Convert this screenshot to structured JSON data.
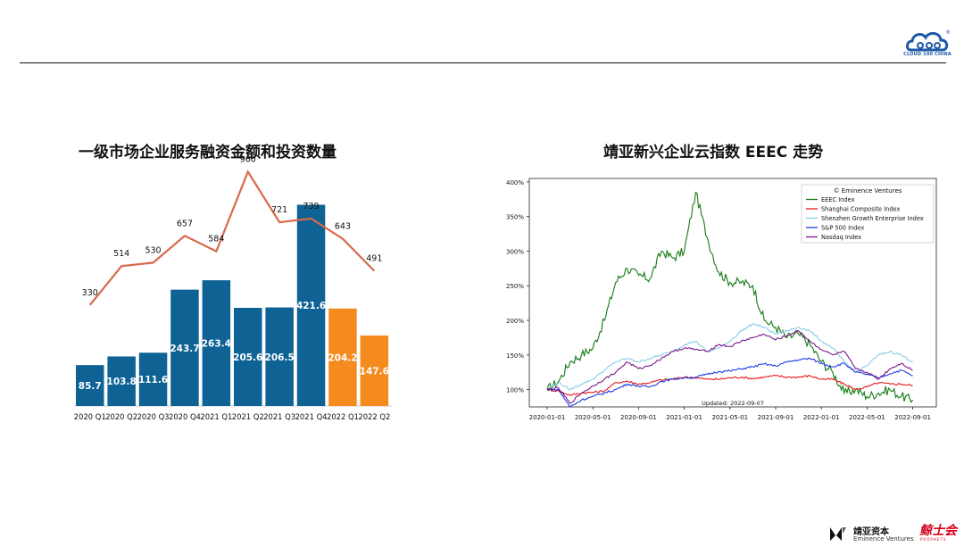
{
  "header": {
    "logo_text": "CLOUD 100 CHINA",
    "logo_mark": "®"
  },
  "footer": {
    "company_cn": "靖亚资本",
    "company_en": "Eminence Ventures",
    "brand": "鲸士会",
    "brand_sub": "PROPHETS"
  },
  "chart_data": [
    {
      "type": "bar",
      "title": "一级市场企业服务融资金额和投资数量",
      "categories": [
        "2020 Q1",
        "2020 Q2",
        "2020 Q3",
        "2020 Q4",
        "2021 Q1",
        "2021 Q2",
        "2021 Q3",
        "2021 Q4",
        "2022 Q1",
        "2022 Q2"
      ],
      "series": [
        {
          "values": [
            85.7,
            103.8,
            111.6,
            243.7,
            263.4,
            205.6,
            206.5,
            421.6,
            204.2,
            147.6
          ],
          "colors": [
            "#0e6294",
            "#0e6294",
            "#0e6294",
            "#0e6294",
            "#0e6294",
            "#0e6294",
            "#0e6294",
            "#0e6294",
            "#f58a1f",
            "#f58a1f"
          ]
        },
        {
          "type": "line",
          "values": [
            330,
            514,
            530,
            657,
            584,
            960,
            721,
            739,
            643,
            491
          ],
          "color": "#d9694a"
        }
      ]
    },
    {
      "type": "line",
      "title": "靖亚新兴企业云指数 EEEC 走势",
      "x_ticks": [
        "2020-01-01",
        "2020-05-01",
        "2020-09-01",
        "2021-01-01",
        "2021-05-01",
        "2021-09-01",
        "2022-01-01",
        "2022-05-01",
        "2022-09-01"
      ],
      "y_ticks": [
        "100%",
        "150%",
        "200%",
        "250%",
        "300%",
        "350%",
        "400%"
      ],
      "ylim": [
        75,
        405
      ],
      "annotation": "Updated: 2022-09-07",
      "legend_title": "© Eminence Ventures",
      "legend_position": "top-right",
      "series": [
        {
          "name": "EEEC Index",
          "color": "#157a15",
          "x": [
            "2020-01",
            "2020-02",
            "2020-03",
            "2020-04",
            "2020-05",
            "2020-06",
            "2020-07",
            "2020-08",
            "2020-09",
            "2020-10",
            "2020-11",
            "2020-12",
            "2021-01",
            "2021-02",
            "2021-03",
            "2021-04",
            "2021-05",
            "2021-06",
            "2021-07",
            "2021-08",
            "2021-09",
            "2021-10",
            "2021-11",
            "2021-12",
            "2022-01",
            "2022-02",
            "2022-03",
            "2022-04",
            "2022-05",
            "2022-06",
            "2022-07",
            "2022-08",
            "2022-09"
          ],
          "values": [
            100,
            112,
            140,
            150,
            160,
            200,
            255,
            275,
            265,
            260,
            300,
            290,
            300,
            385,
            320,
            270,
            255,
            255,
            250,
            200,
            190,
            175,
            180,
            165,
            140,
            125,
            95,
            100,
            90,
            95,
            100,
            90,
            85
          ]
        },
        {
          "name": "Shanghai Composite Index",
          "color": "#e31b1b",
          "x": [
            "2020-01",
            "2020-02",
            "2020-03",
            "2020-04",
            "2020-05",
            "2020-06",
            "2020-07",
            "2020-08",
            "2020-09",
            "2020-10",
            "2020-11",
            "2020-12",
            "2021-01",
            "2021-02",
            "2021-03",
            "2021-04",
            "2021-05",
            "2021-06",
            "2021-07",
            "2021-08",
            "2021-09",
            "2021-10",
            "2021-11",
            "2021-12",
            "2022-01",
            "2022-02",
            "2022-03",
            "2022-04",
            "2022-05",
            "2022-06",
            "2022-07",
            "2022-08",
            "2022-09"
          ],
          "values": [
            100,
            98,
            92,
            95,
            96,
            98,
            110,
            112,
            108,
            110,
            114,
            115,
            118,
            117,
            115,
            115,
            117,
            118,
            116,
            118,
            120,
            118,
            118,
            120,
            115,
            115,
            108,
            100,
            104,
            110,
            108,
            108,
            106
          ]
        },
        {
          "name": "Shenzhen Growth Enterprise Index",
          "color": "#87cde8",
          "x": [
            "2020-01",
            "2020-02",
            "2020-03",
            "2020-04",
            "2020-05",
            "2020-06",
            "2020-07",
            "2020-08",
            "2020-09",
            "2020-10",
            "2020-11",
            "2020-12",
            "2021-01",
            "2021-02",
            "2021-03",
            "2021-04",
            "2021-05",
            "2021-06",
            "2021-07",
            "2021-08",
            "2021-09",
            "2021-10",
            "2021-11",
            "2021-12",
            "2022-01",
            "2022-02",
            "2022-03",
            "2022-04",
            "2022-05",
            "2022-06",
            "2022-07",
            "2022-08",
            "2022-09"
          ],
          "values": [
            100,
            110,
            100,
            108,
            115,
            128,
            140,
            145,
            140,
            145,
            150,
            155,
            165,
            170,
            155,
            160,
            170,
            185,
            195,
            190,
            180,
            185,
            190,
            185,
            170,
            160,
            140,
            125,
            135,
            150,
            155,
            150,
            140
          ]
        },
        {
          "name": "S&P 500 Index",
          "color": "#1f3de0",
          "x": [
            "2020-01",
            "2020-02",
            "2020-03",
            "2020-04",
            "2020-05",
            "2020-06",
            "2020-07",
            "2020-08",
            "2020-09",
            "2020-10",
            "2020-11",
            "2020-12",
            "2021-01",
            "2021-02",
            "2021-03",
            "2021-04",
            "2021-05",
            "2021-06",
            "2021-07",
            "2021-08",
            "2021-09",
            "2021-10",
            "2021-11",
            "2021-12",
            "2022-01",
            "2022-02",
            "2022-03",
            "2022-04",
            "2022-05",
            "2022-06",
            "2022-07",
            "2022-08",
            "2022-09"
          ],
          "values": [
            100,
            100,
            75,
            85,
            90,
            95,
            100,
            108,
            105,
            104,
            112,
            115,
            117,
            118,
            122,
            126,
            127,
            130,
            133,
            137,
            134,
            140,
            143,
            145,
            138,
            133,
            138,
            125,
            122,
            117,
            123,
            128,
            120
          ]
        },
        {
          "name": "Nasdaq Index",
          "color": "#7b1a8c",
          "x": [
            "2020-01",
            "2020-02",
            "2020-03",
            "2020-04",
            "2020-05",
            "2020-06",
            "2020-07",
            "2020-08",
            "2020-09",
            "2020-10",
            "2020-11",
            "2020-12",
            "2021-01",
            "2021-02",
            "2021-03",
            "2021-04",
            "2021-05",
            "2021-06",
            "2021-07",
            "2021-08",
            "2021-09",
            "2021-10",
            "2021-11",
            "2021-12",
            "2022-01",
            "2022-02",
            "2022-03",
            "2022-04",
            "2022-05",
            "2022-06",
            "2022-07",
            "2022-08",
            "2022-09"
          ],
          "values": [
            100,
            102,
            80,
            95,
            105,
            115,
            125,
            140,
            130,
            135,
            145,
            155,
            160,
            158,
            155,
            165,
            162,
            170,
            175,
            180,
            172,
            178,
            185,
            170,
            158,
            150,
            155,
            130,
            125,
            115,
            130,
            138,
            128
          ]
        }
      ]
    }
  ]
}
